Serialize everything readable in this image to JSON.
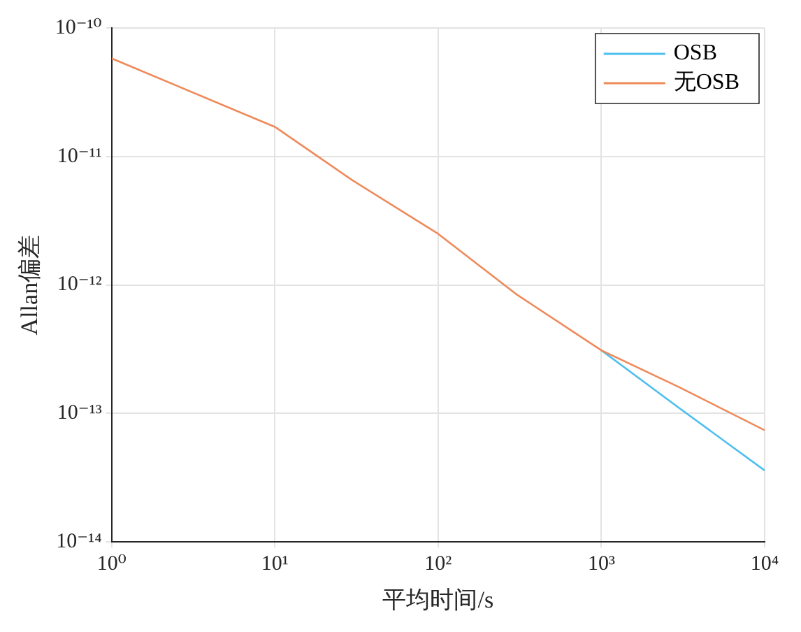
{
  "chart_data": {
    "type": "line",
    "xlabel": "平均时间/s",
    "ylabel": "Allan偏差",
    "log": "xy",
    "grid": true,
    "legend": "top right",
    "marker": "none",
    "line_style": "solid",
    "xlim": [
      1,
      10000
    ],
    "xticks": [
      {
        "value": 1,
        "label": "10⁰"
      },
      {
        "value": 10,
        "label": "10¹"
      },
      {
        "value": 100,
        "label": "10²"
      },
      {
        "value": 1000,
        "label": "10³"
      },
      {
        "value": 10000,
        "label": "10⁴"
      }
    ],
    "ylim": [
      1e-14,
      1e-10
    ],
    "yticks": [
      {
        "value": 1e-14,
        "label": "10⁻¹⁴"
      },
      {
        "value": 1e-13,
        "label": "10⁻¹³"
      },
      {
        "value": 1e-12,
        "label": "10⁻¹²"
      },
      {
        "value": 1e-11,
        "label": "10⁻¹¹"
      },
      {
        "value": 1e-10,
        "label": "10⁻¹⁰"
      }
    ],
    "x": [
      1,
      10,
      30,
      100,
      300,
      1000,
      3000,
      10000
    ],
    "series": [
      {
        "name": "OSB",
        "color": "#4dbeee",
        "values": [
          null,
          null,
          null,
          null,
          null,
          3.1e-13,
          1.1e-13,
          3.6e-14
        ]
      },
      {
        "name": "无OSB",
        "color": "#ee8a5a",
        "values": [
          5.8e-11,
          1.7e-11,
          6.5e-12,
          2.5e-12,
          8.5e-13,
          3.1e-13,
          1.6e-13,
          7.4e-14
        ]
      }
    ]
  }
}
